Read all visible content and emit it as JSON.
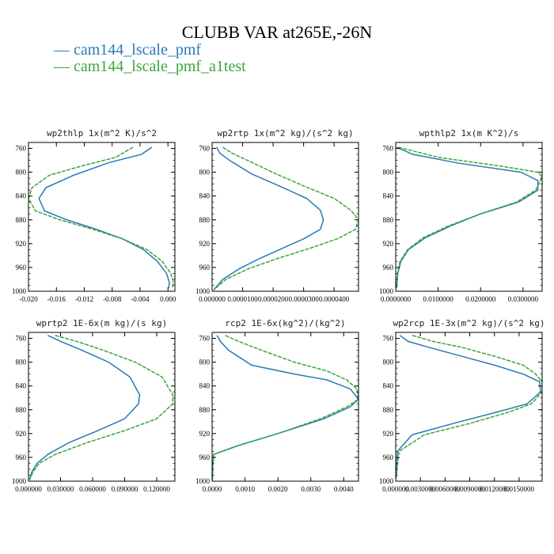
{
  "title": "CLUBB VAR at265E,-26N",
  "legend": [
    {
      "label": "— cam144_lscale_pmf",
      "color": "#2a7ab4"
    },
    {
      "label": "— cam144_lscale_pmf_a1test",
      "color": "#3aa53a"
    }
  ],
  "series_colors": [
    "#2a7ab4",
    "#3aa53a"
  ],
  "chart_data": [
    {
      "type": "line",
      "title": "wp2thlp  1x(m^2 K)/s^2",
      "xlim": [
        -0.02,
        0.001
      ],
      "ylim": [
        1000,
        750
      ],
      "x_ticks": [
        -0.02,
        -0.016,
        -0.012,
        -0.008,
        -0.004,
        0.0
      ],
      "x_tick_labels": [
        "-0.020",
        "-0.016",
        "-0.012",
        "-0.008",
        "-0.004",
        "0.000"
      ],
      "y_ticks": [
        760,
        800,
        840,
        880,
        920,
        960,
        1000
      ],
      "series": [
        {
          "name": "cam144_lscale_pmf",
          "x": [
            -0.0023,
            -0.0038,
            -0.0085,
            -0.0135,
            -0.0175,
            -0.0185,
            -0.0177,
            -0.0145,
            -0.0105,
            -0.0065,
            -0.0035,
            -0.0015,
            -0.0002,
            0.0002,
            0.0001
          ],
          "y": [
            758,
            770,
            784,
            805,
            826,
            844,
            865,
            880,
            895,
            912,
            930,
            950,
            970,
            985,
            995
          ]
        },
        {
          "name": "cam144_lscale_pmf_a1test",
          "x": [
            -0.005,
            -0.0075,
            -0.0125,
            -0.017,
            -0.0195,
            -0.02,
            -0.019,
            -0.0155,
            -0.011,
            -0.0065,
            -0.003,
            -0.0008,
            0.0004,
            0.0008,
            0.0006
          ],
          "y": [
            758,
            775,
            790,
            805,
            826,
            844,
            865,
            880,
            895,
            912,
            930,
            950,
            970,
            985,
            995
          ]
        }
      ]
    },
    {
      "type": "line",
      "title": "wp2rtp  1x(m^2 kg)/(s^2 kg)",
      "xlim": [
        0,
        4.8e-05
      ],
      "ylim": [
        1000,
        750
      ],
      "x_ticks": [
        0,
        1e-05,
        2e-05,
        3e-05,
        4e-05
      ],
      "x_tick_labels": [
        "0.000000",
        "0.0000100",
        "0.0000200",
        "0.0000300",
        "0.0000400"
      ],
      "y_ticks": [
        760,
        800,
        840,
        880,
        920,
        960,
        1000
      ],
      "series": [
        {
          "name": "cam144_lscale_pmf",
          "x": [
            1.5e-06,
            2.5e-06,
            6e-06,
            1.3e-05,
            2.2e-05,
            3.1e-05,
            3.55e-05,
            3.65e-05,
            3.55e-05,
            3e-05,
            2.3e-05,
            1.6e-05,
            9e-06,
            3.5e-06,
            5e-07
          ],
          "y": [
            758,
            768,
            781,
            803,
            823,
            844,
            864,
            880,
            896,
            912,
            928,
            944,
            962,
            980,
            998
          ]
        },
        {
          "name": "cam144_lscale_pmf_a1test",
          "x": [
            3.5e-06,
            6.5e-06,
            1.2e-05,
            2.1e-05,
            3e-05,
            4e-05,
            4.55e-05,
            4.8e-05,
            4.7e-05,
            4.1e-05,
            3.2e-05,
            2.2e-05,
            1.2e-05,
            4.5e-06,
            5e-07
          ],
          "y": [
            758,
            768,
            781,
            803,
            823,
            844,
            864,
            880,
            896,
            912,
            928,
            944,
            962,
            980,
            998
          ]
        }
      ]
    },
    {
      "type": "line",
      "title": "wpthlp2  1x(m K^2)/s",
      "xlim": [
        0,
        0.0345
      ],
      "ylim": [
        1000,
        750
      ],
      "x_ticks": [
        0,
        0.01,
        0.02,
        0.03
      ],
      "x_tick_labels": [
        "0.0000000",
        "0.0100000",
        "0.0200000",
        "0.0300000"
      ],
      "y_ticks": [
        760,
        800,
        840,
        880,
        920,
        960,
        1000
      ],
      "series": [
        {
          "name": "cam144_lscale_pmf",
          "x": [
            0.0002,
            0.004,
            0.015,
            0.0295,
            0.0335,
            0.0335,
            0.029,
            0.02,
            0.013,
            0.007,
            0.003,
            0.0012,
            0.0005,
            0.0002
          ],
          "y": [
            758,
            770,
            785,
            800,
            814,
            830,
            850,
            870,
            890,
            910,
            930,
            950,
            970,
            995
          ]
        },
        {
          "name": "cam144_lscale_pmf_a1test",
          "x": [
            0.0006,
            0.01,
            0.025,
            0.0335,
            0.0345,
            0.033,
            0.0285,
            0.02,
            0.0125,
            0.0065,
            0.0028,
            0.001,
            0.0004,
            0.0001
          ],
          "y": [
            758,
            775,
            790,
            800,
            808,
            830,
            850,
            870,
            890,
            910,
            930,
            950,
            970,
            995
          ]
        }
      ]
    },
    {
      "type": "line",
      "title": "wprtp2  1E-6x(m kg)/(s kg)",
      "xlim": [
        0,
        0.137
      ],
      "ylim": [
        1000,
        750
      ],
      "x_ticks": [
        0,
        0.03,
        0.06,
        0.09,
        0.12
      ],
      "x_tick_labels": [
        "0.000000",
        "0.030000",
        "0.060000",
        "0.090000",
        "0.120000"
      ],
      "y_ticks": [
        760,
        800,
        840,
        880,
        920,
        960,
        1000
      ],
      "series": [
        {
          "name": "cam144_lscale_pmf",
          "x": [
            0.018,
            0.03,
            0.05,
            0.075,
            0.095,
            0.104,
            0.103,
            0.09,
            0.065,
            0.038,
            0.018,
            0.008,
            0.003,
            0.001
          ],
          "y": [
            755,
            765,
            780,
            800,
            825,
            855,
            870,
            895,
            915,
            935,
            955,
            970,
            985,
            998
          ]
        },
        {
          "name": "cam144_lscale_pmf_a1test",
          "x": [
            0.025,
            0.045,
            0.07,
            0.1,
            0.125,
            0.135,
            0.135,
            0.12,
            0.09,
            0.055,
            0.025,
            0.01,
            0.004,
            0.001
          ],
          "y": [
            755,
            765,
            780,
            800,
            825,
            855,
            870,
            895,
            915,
            935,
            955,
            970,
            985,
            998
          ]
        }
      ]
    },
    {
      "type": "line",
      "title": "rcp2  1E-6x(kg^2)/(kg^2)",
      "xlim": [
        0,
        0.00445
      ],
      "ylim": [
        1000,
        750
      ],
      "x_ticks": [
        0,
        0.001,
        0.002,
        0.003,
        0.004
      ],
      "x_tick_labels": [
        "0.0000",
        "0.0010",
        "0.0020",
        "0.0030",
        "0.0040"
      ],
      "y_ticks": [
        760,
        800,
        840,
        880,
        920,
        960,
        1000
      ],
      "series": [
        {
          "name": "cam144_lscale_pmf",
          "x": [
            0.00015,
            0.00025,
            0.0005,
            0.0012,
            0.0025,
            0.0035,
            0.0042,
            0.00445,
            0.0042,
            0.0034,
            0.002,
            0.0008,
            5e-05,
            2e-05,
            1e-05
          ],
          "y": [
            755,
            765,
            780,
            805,
            820,
            830,
            845,
            862,
            875,
            895,
            920,
            940,
            955,
            975,
            998
          ]
        },
        {
          "name": "cam144_lscale_pmf_a1test",
          "x": [
            0.0004,
            0.0008,
            0.0015,
            0.0025,
            0.0035,
            0.0041,
            0.0044,
            0.00445,
            0.0041,
            0.0033,
            0.002,
            0.0008,
            5e-05,
            2e-05,
            1e-05
          ],
          "y": [
            755,
            765,
            780,
            800,
            815,
            830,
            845,
            862,
            875,
            895,
            920,
            940,
            955,
            975,
            998
          ]
        }
      ]
    },
    {
      "type": "line",
      "title": "wp2rcp  1E-3x(m^2 kg)/(s^2 kg)",
      "xlim": [
        0,
        0.0178
      ],
      "ylim": [
        1000,
        750
      ],
      "x_ticks": [
        0,
        0.003,
        0.006,
        0.009,
        0.012,
        0.015
      ],
      "x_tick_labels": [
        "0.000000",
        "0.0030000",
        "0.0060000",
        "0.0090000",
        "0.0120000",
        "0.0150000"
      ],
      "y_ticks": [
        760,
        800,
        840,
        880,
        920,
        960,
        1000
      ],
      "series": [
        {
          "name": "cam144_lscale_pmf",
          "x": [
            0.0005,
            0.0015,
            0.004,
            0.008,
            0.012,
            0.0155,
            0.0175,
            0.0176,
            0.016,
            0.012,
            0.007,
            0.002,
            0.0002,
            5e-05
          ],
          "y": [
            755,
            765,
            775,
            790,
            805,
            820,
            833,
            850,
            870,
            885,
            903,
            922,
            950,
            995
          ]
        },
        {
          "name": "cam144_lscale_pmf_a1test",
          "x": [
            0.002,
            0.0045,
            0.008,
            0.012,
            0.0155,
            0.017,
            0.0178,
            0.0178,
            0.0165,
            0.0135,
            0.009,
            0.0035,
            0.0004,
            5e-05
          ],
          "y": [
            755,
            765,
            775,
            790,
            805,
            820,
            833,
            850,
            870,
            885,
            903,
            922,
            950,
            995
          ]
        }
      ]
    }
  ]
}
